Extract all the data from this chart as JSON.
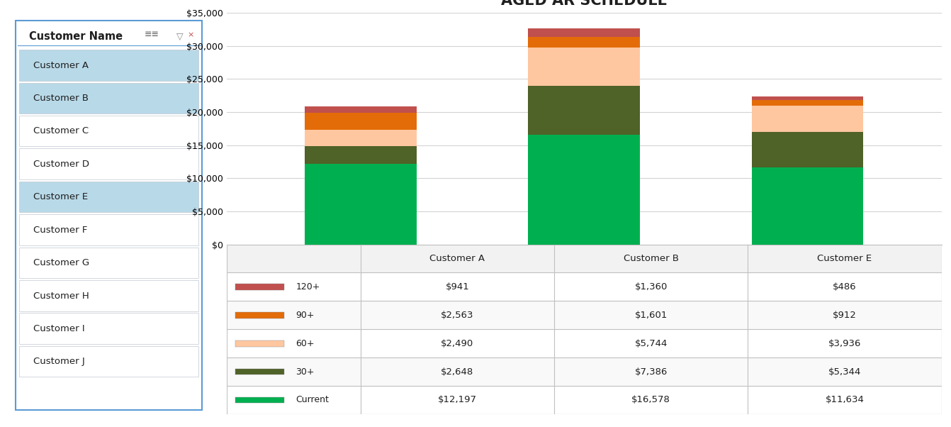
{
  "title": "AGED AR SCHEDULE",
  "customers_chart": [
    "Customer A",
    "Customer B",
    "Customer E"
  ],
  "categories": [
    "Current",
    "30+",
    "60+",
    "90+",
    "120+"
  ],
  "colors": {
    "Current": "#00B050",
    "30+": "#4F6228",
    "60+": "#FFC7A0",
    "90+": "#E36C09",
    "120+": "#C0504D"
  },
  "data": {
    "Customer A": {
      "Current": 12197,
      "30+": 2648,
      "60+": 2490,
      "90+": 2563,
      "120+": 941
    },
    "Customer B": {
      "Current": 16578,
      "30+": 7386,
      "60+": 5744,
      "90+": 1601,
      "120+": 1360
    },
    "Customer E": {
      "Current": 11634,
      "30+": 5344,
      "60+": 3936,
      "90+": 912,
      "120+": 486
    }
  },
  "table_rows": [
    "120+",
    "90+",
    "60+",
    "30+",
    "Current"
  ],
  "table_colors": {
    "120+": "#C0504D",
    "90+": "#E36C09",
    "60+": "#FFC7A0",
    "30+": "#4F6228",
    "Current": "#00B050"
  },
  "slicer_title": "Customer Name",
  "slicer_items": [
    "Customer A",
    "Customer B",
    "Customer C",
    "Customer D",
    "Customer E",
    "Customer F",
    "Customer G",
    "Customer H",
    "Customer I",
    "Customer J"
  ],
  "slicer_selected": [
    "Customer A",
    "Customer B",
    "Customer E"
  ],
  "slicer_selected_bg": "#B8D9E8",
  "slicer_unselected_bg": "#FFFFFF",
  "slicer_border_color": "#C0C8D0",
  "slicer_outer_border": "#5B9BD5",
  "ylim": [
    0,
    35000
  ],
  "yticks": [
    0,
    5000,
    10000,
    15000,
    20000,
    25000,
    30000,
    35000
  ],
  "background_color": "#FFFFFF",
  "grid_color": "#D3D3D3"
}
